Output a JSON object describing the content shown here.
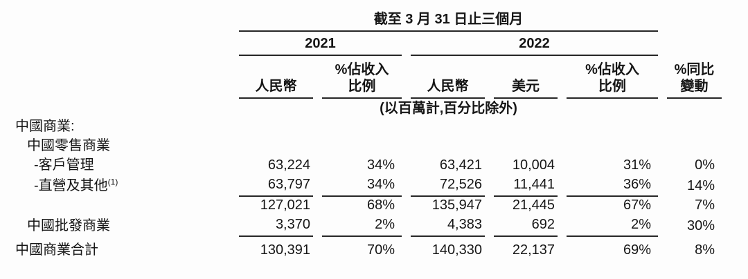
{
  "colors": {
    "background": "#fdfdfd",
    "text": "#161616",
    "rule": "#262626"
  },
  "period_header": "截至 3 月 31 日止三個月",
  "unit_note": "(以百萬計,百分比除外)",
  "year_groups": {
    "y2021": "2021",
    "y2022": "2022"
  },
  "columns": {
    "rmb_2021": "人民幣",
    "pct_2021_line1": "%佔收入",
    "pct_2021_line2": "比例",
    "rmb_2022": "人民幣",
    "usd_2022": "美元",
    "pct_2022_line1": "%佔收入",
    "pct_2022_line2": "比例",
    "yoy_line1": "%同比",
    "yoy_line2": "變動"
  },
  "rows": [
    {
      "label": "中國商業:"
    },
    {
      "label": "中國零售商業"
    },
    {
      "label": "-客戶管理",
      "rmb2021": "63,224",
      "pct2021": "34%",
      "rmb2022": "63,421",
      "usd2022": "10,004",
      "pct2022": "31%",
      "yoy": "0%"
    },
    {
      "label": "-直營及其他",
      "sup": "(1)",
      "rmb2021": "63,797",
      "pct2021": "34%",
      "rmb2022": "72,526",
      "usd2022": "11,441",
      "pct2022": "36%",
      "yoy": "14%"
    },
    {
      "label": "",
      "rmb2021": "127,021",
      "pct2021": "68%",
      "rmb2022": "135,947",
      "usd2022": "21,445",
      "pct2022": "67%",
      "yoy": "7%"
    },
    {
      "label": "中國批發商業",
      "rmb2021": "3,370",
      "pct2021": "2%",
      "rmb2022": "4,383",
      "usd2022": "692",
      "pct2022": "2%",
      "yoy": "30%"
    },
    {
      "label": "中國商業合計",
      "rmb2021": "130,391",
      "pct2021": "70%",
      "rmb2022": "140,330",
      "usd2022": "22,137",
      "pct2022": "69%",
      "yoy": "8%"
    }
  ]
}
